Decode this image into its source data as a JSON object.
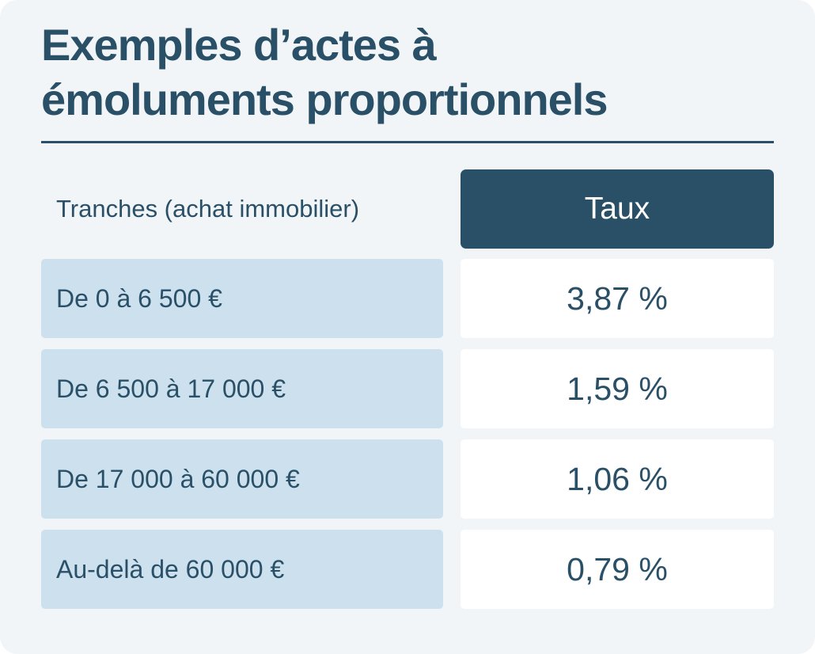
{
  "title": {
    "line1": "Exemples d’actes à",
    "line2": "émoluments proportionnels"
  },
  "table": {
    "col_label": "Tranches (achat immobilier)",
    "col_rate": "Taux",
    "rows": [
      {
        "tranche": "De 0 à 6 500 €",
        "taux": "3,87 %"
      },
      {
        "tranche": "De 6 500 à 17 000 €",
        "taux": "1,59 %"
      },
      {
        "tranche": "De 17 000 à 60 000 €",
        "taux": "1,06 %"
      },
      {
        "tranche": "Au-delà de 60 000 €",
        "taux": "0,79 %"
      }
    ]
  },
  "colors": {
    "primary": "#2a5068",
    "card_background": "#f1f5f7",
    "label_cell": "#cce0ee",
    "value_cell": "#ffffff"
  }
}
